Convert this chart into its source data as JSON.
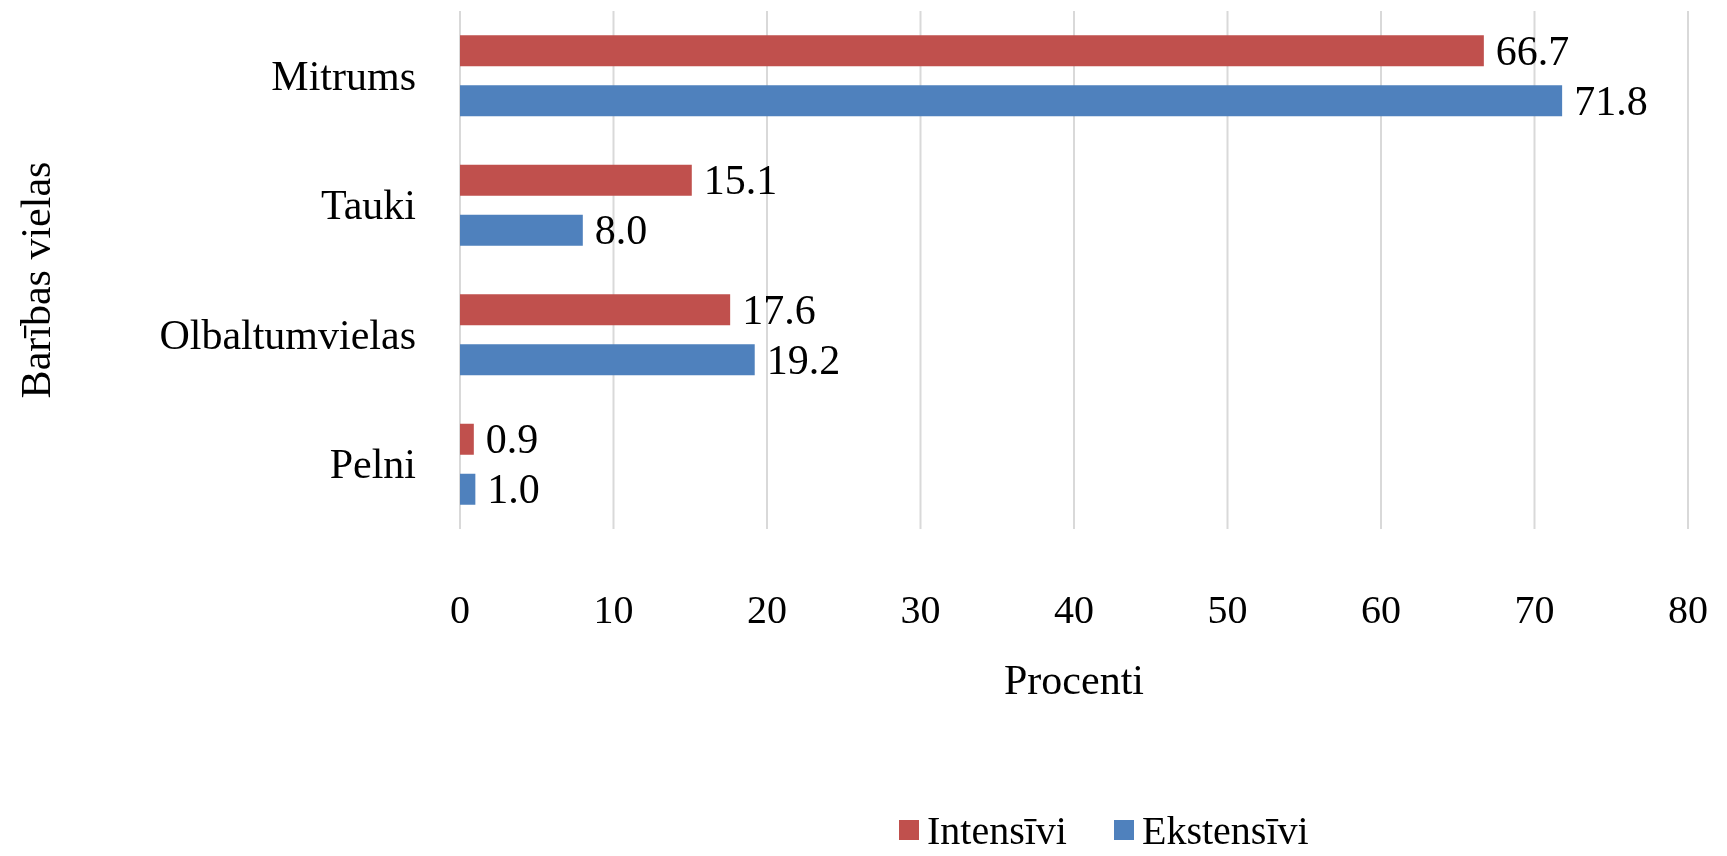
{
  "chart_data": {
    "type": "bar",
    "orientation": "horizontal",
    "xlabel": "Procenti",
    "ylabel": "Barības vielas",
    "categories": [
      "Mitrums",
      "Tauki",
      "Olbaltumvielas",
      "Pelni"
    ],
    "series": [
      {
        "name": "Intensīvi",
        "color": "#c0504d",
        "values": [
          66.7,
          15.1,
          17.6,
          0.9
        ],
        "value_labels": [
          "66.7",
          "15.1",
          "17.6",
          "0.9"
        ]
      },
      {
        "name": "Ekstensīvi",
        "color": "#4f81bd",
        "values": [
          71.8,
          8.0,
          19.2,
          1.0
        ],
        "value_labels": [
          "71.8",
          "8.0",
          "19.2",
          "1.0"
        ]
      }
    ],
    "xlim": [
      0,
      80
    ],
    "xticks": [
      0,
      10,
      20,
      30,
      40,
      50,
      60,
      70,
      80
    ],
    "grid": "x",
    "legend": "bottom"
  }
}
